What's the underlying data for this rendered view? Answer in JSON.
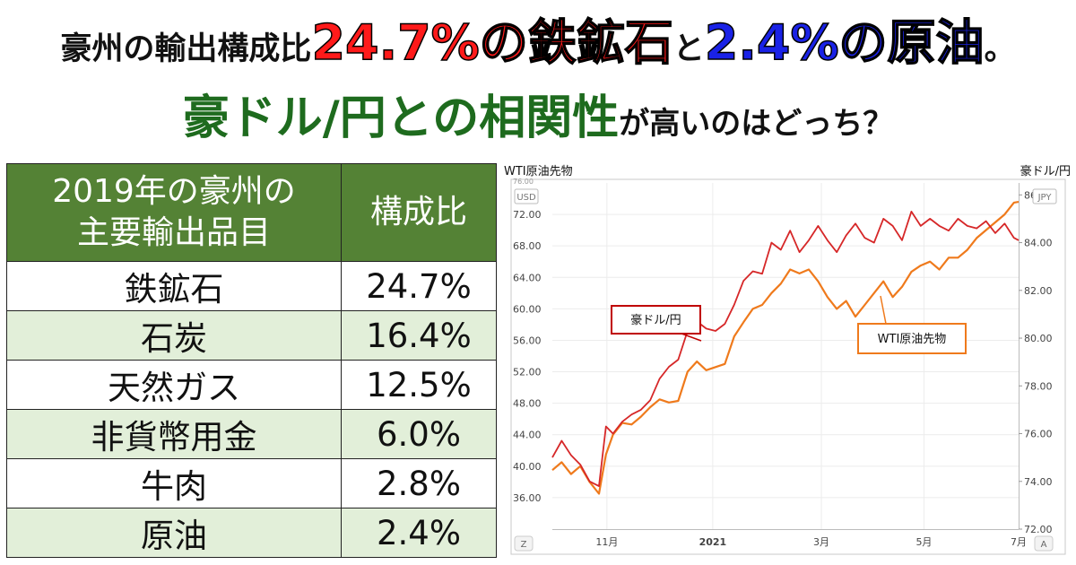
{
  "headline": {
    "line1_prefix": "豪州の輸出構成比",
    "line1_highlight1": "24.7%の鉄鉱石",
    "line1_connector": "と",
    "line1_highlight2": "2.4%の原油",
    "line1_end": "。",
    "line2_highlight": "豪ドル/円との相関性",
    "line2_suffix": "が高いのはどっち？"
  },
  "export_table": {
    "header_item_line1": "2019年の豪州の",
    "header_item_line2": "主要輸出品目",
    "header_share": "構成比",
    "rows": [
      {
        "item": "鉄鉱石",
        "share": "24.7%"
      },
      {
        "item": "石炭",
        "share": "16.4%"
      },
      {
        "item": "天然ガス",
        "share": "12.5%"
      },
      {
        "item": "非貨幣用金",
        "share": "6.0%"
      },
      {
        "item": "牛肉",
        "share": "2.8%"
      },
      {
        "item": "原油",
        "share": "2.4%"
      }
    ]
  },
  "chart_data": {
    "type": "line",
    "left_axis_title": "WTI原油先物",
    "right_axis_title": "豪ドル/円",
    "left_unit": "USD",
    "right_unit": "JPY",
    "left_ylim": [
      32,
      76
    ],
    "right_ylim": [
      72,
      86.5
    ],
    "left_ticks": [
      "36.00",
      "40.00",
      "44.00",
      "48.00",
      "52.00",
      "56.00",
      "60.00",
      "64.00",
      "68.00",
      "72.00"
    ],
    "left_tick_values": [
      36,
      40,
      44,
      48,
      52,
      56,
      60,
      64,
      68,
      72
    ],
    "top_cut_tick": "76.00",
    "right_ticks": [
      "72.00",
      "74.00",
      "76.00",
      "78.00",
      "80.00",
      "82.00",
      "84.00",
      "86.00"
    ],
    "right_tick_values": [
      72,
      74,
      76,
      78,
      80,
      82,
      84,
      86
    ],
    "x_labels": [
      "11月",
      "2021",
      "3月",
      "5月",
      "7月"
    ],
    "x_label_positions": [
      0.117,
      0.344,
      0.577,
      0.797,
      1.0
    ],
    "corner_left": "Z",
    "corner_right": "A",
    "series": [
      {
        "name": "豪ドル/円",
        "color": "#d62728",
        "axis": "right",
        "x": [
          0,
          0.02,
          0.04,
          0.06,
          0.08,
          0.1,
          0.115,
          0.13,
          0.15,
          0.17,
          0.19,
          0.21,
          0.23,
          0.25,
          0.27,
          0.29,
          0.31,
          0.33,
          0.35,
          0.37,
          0.39,
          0.41,
          0.43,
          0.45,
          0.47,
          0.49,
          0.51,
          0.53,
          0.55,
          0.57,
          0.59,
          0.61,
          0.63,
          0.65,
          0.67,
          0.69,
          0.71,
          0.73,
          0.75,
          0.77,
          0.79,
          0.81,
          0.83,
          0.85,
          0.87,
          0.89,
          0.91,
          0.93,
          0.95,
          0.97,
          0.99,
          1.0
        ],
        "values": [
          75.0,
          75.7,
          75.1,
          74.7,
          74.0,
          73.8,
          76.3,
          76.0,
          76.5,
          76.8,
          77.0,
          77.4,
          78.3,
          78.8,
          79.1,
          80.3,
          80.7,
          80.4,
          80.3,
          80.6,
          81.4,
          82.4,
          82.8,
          82.7,
          84.0,
          83.7,
          84.5,
          83.6,
          84.1,
          84.7,
          84.1,
          83.6,
          84.3,
          84.8,
          84.2,
          84.0,
          85.0,
          84.7,
          84.1,
          85.3,
          84.7,
          85.0,
          84.7,
          84.5,
          85.0,
          84.7,
          84.6,
          84.9,
          84.4,
          84.8,
          84.2,
          84.1
        ]
      },
      {
        "name": "WTI原油先物",
        "color": "#ef7a1c",
        "axis": "left",
        "x": [
          0,
          0.02,
          0.04,
          0.06,
          0.08,
          0.1,
          0.115,
          0.13,
          0.15,
          0.17,
          0.19,
          0.21,
          0.23,
          0.25,
          0.27,
          0.29,
          0.31,
          0.33,
          0.35,
          0.37,
          0.39,
          0.41,
          0.43,
          0.45,
          0.47,
          0.49,
          0.51,
          0.53,
          0.55,
          0.57,
          0.59,
          0.61,
          0.63,
          0.65,
          0.67,
          0.69,
          0.71,
          0.73,
          0.75,
          0.77,
          0.79,
          0.81,
          0.83,
          0.85,
          0.87,
          0.89,
          0.91,
          0.93,
          0.95,
          0.97,
          0.99,
          1.0
        ],
        "values": [
          39.5,
          40.5,
          39.0,
          40.0,
          38.0,
          36.5,
          41.5,
          44.0,
          45.5,
          45.3,
          46.3,
          47.5,
          48.5,
          48.1,
          48.3,
          52.0,
          53.3,
          52.2,
          52.6,
          53.0,
          56.5,
          58.3,
          60.0,
          60.5,
          62.0,
          63.2,
          65.0,
          64.5,
          65.0,
          63.5,
          61.5,
          60.0,
          61.0,
          59.0,
          60.5,
          62.0,
          63.5,
          61.5,
          62.8,
          64.7,
          65.5,
          66.0,
          65.0,
          66.5,
          66.5,
          67.5,
          69.0,
          70.0,
          71.0,
          72.0,
          73.5,
          73.6
        ]
      }
    ],
    "annotation_left_label": "豪ドル/円",
    "annotation_right_label": "WTI原油先物"
  }
}
